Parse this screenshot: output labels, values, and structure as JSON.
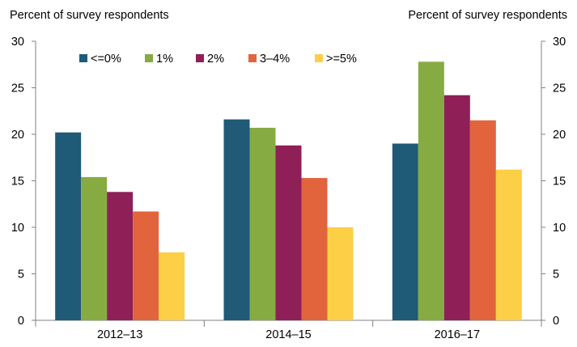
{
  "chart_data": {
    "type": "bar",
    "ylabel_left": "Percent of survey respondents",
    "ylabel_right": "Percent of survey respondents",
    "categories": [
      "2012–13",
      "2014–15",
      "2016–17"
    ],
    "ylim": [
      0,
      30
    ],
    "yticks": [
      "0",
      "5",
      "10",
      "15",
      "20",
      "25",
      "30"
    ],
    "grid": false,
    "legend_position": "top-left",
    "series": [
      {
        "name": "<=0%",
        "color": "#1f5a77",
        "values": [
          20.2,
          21.6,
          19.0
        ]
      },
      {
        "name": "1%",
        "color": "#86ab43",
        "values": [
          15.4,
          20.7,
          27.8
        ]
      },
      {
        "name": "2%",
        "color": "#8e1f57",
        "values": [
          13.8,
          18.8,
          24.2
        ]
      },
      {
        "name": "3–4%",
        "color": "#e2643c",
        "values": [
          11.7,
          15.3,
          21.5
        ]
      },
      {
        "name": ">=5%",
        "color": "#fdcf47",
        "values": [
          7.3,
          10.0,
          16.2
        ]
      }
    ]
  }
}
